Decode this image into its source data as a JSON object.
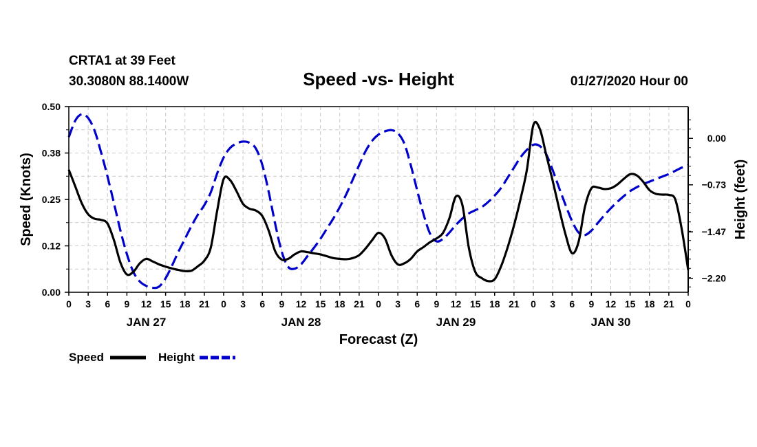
{
  "header": {
    "station": "CRTA1 at 39 Feet",
    "location": "30.3080N 88.1400W",
    "title": "Speed -vs- Height",
    "issued": "01/27/2020 Hour 00"
  },
  "chart_data": {
    "type": "line",
    "title": "Speed -vs- Height",
    "xlabel": "Forecast (Z)",
    "ylabel_left": "Speed (Knots)",
    "ylabel_right": "Height (feet)",
    "xlim_hours": [
      0,
      96
    ],
    "ylim_left": [
      0,
      0.5
    ],
    "ylim_right": [
      -2.42,
      0.5
    ],
    "left_ticks": [
      {
        "value": 0.0,
        "label": "0.00"
      },
      {
        "value": 0.125,
        "label": "0.12"
      },
      {
        "value": 0.25,
        "label": "0.25"
      },
      {
        "value": 0.375,
        "label": "0.38"
      },
      {
        "value": 0.5,
        "label": "0.50"
      }
    ],
    "right_ticks": [
      {
        "value": 0.0,
        "label": "0.00"
      },
      {
        "value": -0.73,
        "label": "−0.73"
      },
      {
        "value": -1.47,
        "label": "−1.47"
      },
      {
        "value": -2.2,
        "label": "−2.20"
      }
    ],
    "x_tick_labels": [
      {
        "hour": 0,
        "label": "0"
      },
      {
        "hour": 3,
        "label": "3"
      },
      {
        "hour": 6,
        "label": "6"
      },
      {
        "hour": 9,
        "label": "9"
      },
      {
        "hour": 12,
        "label": "12"
      },
      {
        "hour": 15,
        "label": "15"
      },
      {
        "hour": 18,
        "label": "18"
      },
      {
        "hour": 21,
        "label": "21"
      },
      {
        "hour": 24,
        "label": "0"
      },
      {
        "hour": 27,
        "label": "3"
      },
      {
        "hour": 30,
        "label": "6"
      },
      {
        "hour": 33,
        "label": "9"
      },
      {
        "hour": 36,
        "label": "12"
      },
      {
        "hour": 39,
        "label": "15"
      },
      {
        "hour": 42,
        "label": "18"
      },
      {
        "hour": 45,
        "label": "21"
      },
      {
        "hour": 48,
        "label": "0"
      },
      {
        "hour": 51,
        "label": "3"
      },
      {
        "hour": 54,
        "label": "6"
      },
      {
        "hour": 57,
        "label": "9"
      },
      {
        "hour": 60,
        "label": "12"
      },
      {
        "hour": 63,
        "label": "15"
      },
      {
        "hour": 66,
        "label": "18"
      },
      {
        "hour": 69,
        "label": "21"
      },
      {
        "hour": 72,
        "label": "0"
      },
      {
        "hour": 75,
        "label": "3"
      },
      {
        "hour": 78,
        "label": "6"
      },
      {
        "hour": 81,
        "label": "9"
      },
      {
        "hour": 84,
        "label": "12"
      },
      {
        "hour": 87,
        "label": "15"
      },
      {
        "hour": 90,
        "label": "18"
      },
      {
        "hour": 93,
        "label": "21"
      },
      {
        "hour": 96,
        "label": "0"
      }
    ],
    "day_labels": [
      {
        "hour": 12,
        "label": "JAN 27"
      },
      {
        "hour": 36,
        "label": "JAN 28"
      },
      {
        "hour": 60,
        "label": "JAN 29"
      },
      {
        "hour": 84,
        "label": "JAN 30"
      }
    ],
    "series": [
      {
        "name": "Speed",
        "axis": "left",
        "color": "#000000",
        "dash": "solid",
        "points": [
          [
            0,
            0.33
          ],
          [
            1,
            0.285
          ],
          [
            2,
            0.24
          ],
          [
            3,
            0.21
          ],
          [
            4,
            0.198
          ],
          [
            5,
            0.195
          ],
          [
            6,
            0.185
          ],
          [
            7,
            0.14
          ],
          [
            8,
            0.08
          ],
          [
            9,
            0.048
          ],
          [
            10,
            0.055
          ],
          [
            11,
            0.078
          ],
          [
            12,
            0.09
          ],
          [
            13,
            0.083
          ],
          [
            14,
            0.075
          ],
          [
            15,
            0.069
          ],
          [
            16,
            0.064
          ],
          [
            17,
            0.06
          ],
          [
            18,
            0.057
          ],
          [
            19,
            0.058
          ],
          [
            20,
            0.07
          ],
          [
            21,
            0.085
          ],
          [
            22,
            0.12
          ],
          [
            23,
            0.22
          ],
          [
            24,
            0.305
          ],
          [
            25,
            0.302
          ],
          [
            26,
            0.272
          ],
          [
            27,
            0.238
          ],
          [
            28,
            0.225
          ],
          [
            29,
            0.22
          ],
          [
            30,
            0.205
          ],
          [
            31,
            0.165
          ],
          [
            32,
            0.11
          ],
          [
            33,
            0.088
          ],
          [
            34,
            0.09
          ],
          [
            35,
            0.102
          ],
          [
            36,
            0.11
          ],
          [
            37,
            0.108
          ],
          [
            38,
            0.105
          ],
          [
            39,
            0.102
          ],
          [
            40,
            0.097
          ],
          [
            41,
            0.092
          ],
          [
            42,
            0.09
          ],
          [
            43,
            0.089
          ],
          [
            44,
            0.092
          ],
          [
            45,
            0.1
          ],
          [
            46,
            0.118
          ],
          [
            47,
            0.14
          ],
          [
            48,
            0.16
          ],
          [
            49,
            0.145
          ],
          [
            50,
            0.1
          ],
          [
            51,
            0.075
          ],
          [
            52,
            0.078
          ],
          [
            53,
            0.09
          ],
          [
            54,
            0.11
          ],
          [
            55,
            0.122
          ],
          [
            56,
            0.135
          ],
          [
            57,
            0.145
          ],
          [
            58,
            0.16
          ],
          [
            59,
            0.2
          ],
          [
            60,
            0.258
          ],
          [
            61,
            0.235
          ],
          [
            62,
            0.12
          ],
          [
            63,
            0.055
          ],
          [
            64,
            0.038
          ],
          [
            65,
            0.03
          ],
          [
            66,
            0.035
          ],
          [
            67,
            0.07
          ],
          [
            68,
            0.12
          ],
          [
            69,
            0.18
          ],
          [
            70,
            0.25
          ],
          [
            71,
            0.33
          ],
          [
            72,
            0.45
          ],
          [
            73,
            0.44
          ],
          [
            74,
            0.37
          ],
          [
            75,
            0.3
          ],
          [
            76,
            0.225
          ],
          [
            77,
            0.155
          ],
          [
            78,
            0.105
          ],
          [
            79,
            0.135
          ],
          [
            80,
            0.23
          ],
          [
            81,
            0.28
          ],
          [
            82,
            0.282
          ],
          [
            83,
            0.278
          ],
          [
            84,
            0.28
          ],
          [
            85,
            0.29
          ],
          [
            86,
            0.305
          ],
          [
            87,
            0.318
          ],
          [
            88,
            0.315
          ],
          [
            89,
            0.298
          ],
          [
            90,
            0.275
          ],
          [
            91,
            0.265
          ],
          [
            92,
            0.263
          ],
          [
            93,
            0.262
          ],
          [
            94,
            0.25
          ],
          [
            95,
            0.17
          ],
          [
            96,
            0.06
          ]
        ]
      },
      {
        "name": "Height",
        "axis": "right",
        "color": "#0000cc",
        "dash": "dashed",
        "points": [
          [
            0,
            0.02
          ],
          [
            1,
            0.28
          ],
          [
            2,
            0.38
          ],
          [
            3,
            0.32
          ],
          [
            4,
            0.12
          ],
          [
            5,
            -0.22
          ],
          [
            6,
            -0.6
          ],
          [
            7,
            -1.02
          ],
          [
            8,
            -1.45
          ],
          [
            9,
            -1.82
          ],
          [
            10,
            -2.1
          ],
          [
            11,
            -2.25
          ],
          [
            12,
            -2.32
          ],
          [
            13,
            -2.35
          ],
          [
            14,
            -2.33
          ],
          [
            15,
            -2.2
          ],
          [
            16,
            -2.0
          ],
          [
            17,
            -1.78
          ],
          [
            18,
            -1.58
          ],
          [
            19,
            -1.38
          ],
          [
            20,
            -1.2
          ],
          [
            21,
            -1.05
          ],
          [
            22,
            -0.85
          ],
          [
            23,
            -0.55
          ],
          [
            24,
            -0.3
          ],
          [
            25,
            -0.15
          ],
          [
            26,
            -0.08
          ],
          [
            27,
            -0.05
          ],
          [
            28,
            -0.07
          ],
          [
            29,
            -0.16
          ],
          [
            30,
            -0.42
          ],
          [
            31,
            -0.85
          ],
          [
            32,
            -1.35
          ],
          [
            33,
            -1.78
          ],
          [
            34,
            -2.02
          ],
          [
            35,
            -2.05
          ],
          [
            36,
            -1.98
          ],
          [
            37,
            -1.85
          ],
          [
            38,
            -1.72
          ],
          [
            39,
            -1.58
          ],
          [
            40,
            -1.42
          ],
          [
            41,
            -1.26
          ],
          [
            42,
            -1.08
          ],
          [
            43,
            -0.88
          ],
          [
            44,
            -0.65
          ],
          [
            45,
            -0.42
          ],
          [
            46,
            -0.2
          ],
          [
            47,
            -0.04
          ],
          [
            48,
            0.06
          ],
          [
            49,
            0.11
          ],
          [
            50,
            0.13
          ],
          [
            51,
            0.08
          ],
          [
            52,
            -0.08
          ],
          [
            53,
            -0.42
          ],
          [
            54,
            -0.82
          ],
          [
            55,
            -1.2
          ],
          [
            56,
            -1.5
          ],
          [
            57,
            -1.62
          ],
          [
            58,
            -1.58
          ],
          [
            59,
            -1.48
          ],
          [
            60,
            -1.36
          ],
          [
            61,
            -1.26
          ],
          [
            62,
            -1.18
          ],
          [
            63,
            -1.13
          ],
          [
            64,
            -1.08
          ],
          [
            65,
            -1.0
          ],
          [
            66,
            -0.9
          ],
          [
            67,
            -0.78
          ],
          [
            68,
            -0.62
          ],
          [
            69,
            -0.46
          ],
          [
            70,
            -0.3
          ],
          [
            71,
            -0.18
          ],
          [
            72,
            -0.1
          ],
          [
            73,
            -0.12
          ],
          [
            74,
            -0.25
          ],
          [
            75,
            -0.5
          ],
          [
            76,
            -0.78
          ],
          [
            77,
            -1.05
          ],
          [
            78,
            -1.3
          ],
          [
            79,
            -1.48
          ],
          [
            80,
            -1.52
          ],
          [
            81,
            -1.45
          ],
          [
            82,
            -1.33
          ],
          [
            83,
            -1.21
          ],
          [
            84,
            -1.1
          ],
          [
            85,
            -1.0
          ],
          [
            86,
            -0.91
          ],
          [
            87,
            -0.83
          ],
          [
            88,
            -0.77
          ],
          [
            89,
            -0.72
          ],
          [
            90,
            -0.68
          ],
          [
            91,
            -0.64
          ],
          [
            92,
            -0.6
          ],
          [
            93,
            -0.56
          ],
          [
            94,
            -0.51
          ],
          [
            95,
            -0.46
          ],
          [
            96,
            -0.42
          ]
        ]
      }
    ],
    "legend": {
      "placement": "bottom-left",
      "items": [
        {
          "label": "Speed",
          "color": "#000000",
          "dash": "solid"
        },
        {
          "label": "Height",
          "color": "#0000cc",
          "dash": "dashed"
        }
      ]
    }
  }
}
